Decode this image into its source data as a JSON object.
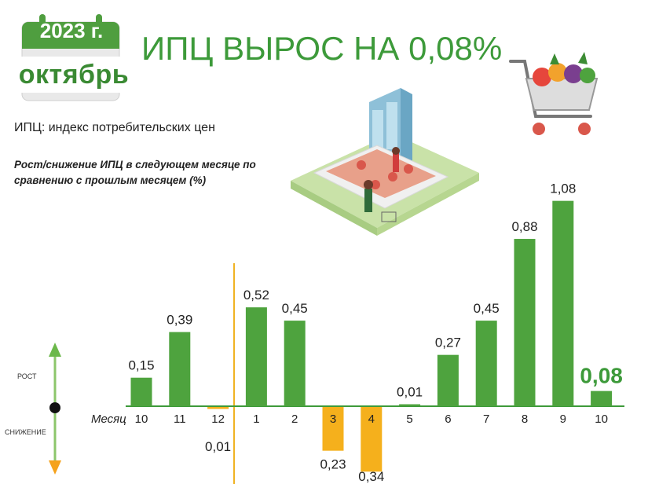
{
  "header": {
    "year": "2023 г.",
    "month": "октябрь",
    "title": "ИПЦ ВЫРОС НА 0,08%"
  },
  "subtitle": "ИПЦ: индекс потребительских цен",
  "caption": "Рост/снижение ИПЦ в следующем месяце по сравнению с прошлым месяцем (%)",
  "legend": {
    "up": "РОСТ",
    "down": "СНИЖЕНИЕ"
  },
  "colors": {
    "positive": "#4ea33e",
    "negative": "#f5b01c",
    "title": "#3d9a3a",
    "divider": "#f0b323",
    "arrow": "#6bb84a"
  },
  "chart_data": {
    "type": "bar",
    "xlabel": "Месяц",
    "categories": [
      "10",
      "11",
      "12",
      "1",
      "2",
      "3",
      "4",
      "5",
      "6",
      "7",
      "8",
      "9",
      "10"
    ],
    "values": [
      0.15,
      0.39,
      -0.01,
      0.52,
      0.45,
      -0.23,
      -0.34,
      0.01,
      0.27,
      0.45,
      0.88,
      1.08,
      0.08
    ],
    "labels": [
      "0,15",
      "0,39",
      "0,01",
      "0,52",
      "0,45",
      "0,23",
      "0,34",
      "0,01",
      "0,27",
      "0,45",
      "0,88",
      "1,08",
      "0,08"
    ],
    "highlight_index": 12
  }
}
